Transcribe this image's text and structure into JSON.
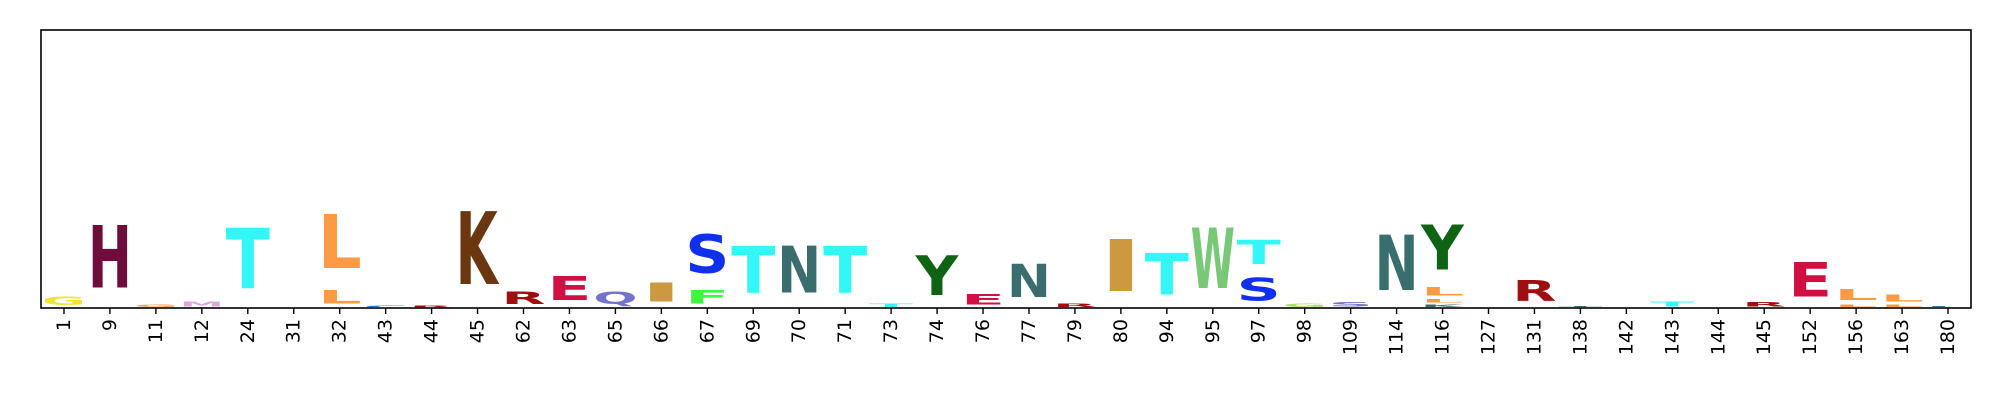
{
  "chart_data": {
    "type": "sequence-logo",
    "title": "",
    "xlabel": "",
    "ylabel": "",
    "ylim": [
      0,
      1
    ],
    "grid": false,
    "legend": "none",
    "positions": [
      "1",
      "9",
      "11",
      "12",
      "24",
      "31",
      "32",
      "43",
      "44",
      "45",
      "62",
      "63",
      "65",
      "66",
      "67",
      "69",
      "70",
      "71",
      "73",
      "74",
      "76",
      "77",
      "79",
      "80",
      "94",
      "95",
      "97",
      "98",
      "109",
      "114",
      "116",
      "127",
      "131",
      "138",
      "142",
      "143",
      "144",
      "145",
      "152",
      "156",
      "163",
      "180"
    ],
    "stacks": [
      [
        {
          "letter": "G",
          "height": 0.05,
          "color": "#f2e430"
        }
      ],
      [
        {
          "letter": "H",
          "height": 0.36,
          "color": "#6e0d3c"
        }
      ],
      [
        {
          "letter": "G",
          "height": 0.015,
          "color": "#f0a060"
        }
      ],
      [
        {
          "letter": "M",
          "height": 0.03,
          "color": "#dcaad6"
        }
      ],
      [
        {
          "letter": "T",
          "height": 0.35,
          "color": "#33f7f7"
        }
      ],
      [],
      [
        {
          "letter": "L",
          "height": 0.08,
          "color": "#ff9a44"
        },
        {
          "letter": "L",
          "height": 0.31,
          "color": "#ff9a44"
        }
      ],
      [
        {
          "letter": "C",
          "height": 0.01,
          "color": "#3a7ab8"
        }
      ],
      [
        {
          "letter": "R",
          "height": 0.01,
          "color": "#9e1010"
        }
      ],
      [
        {
          "letter": "K",
          "height": 0.42,
          "color": "#6a3710"
        }
      ],
      [
        {
          "letter": "R",
          "height": 0.07,
          "color": "#9e1010"
        }
      ],
      [
        {
          "letter": "E",
          "height": 0.14,
          "color": "#d01041"
        }
      ],
      [
        {
          "letter": "Q",
          "height": 0.07,
          "color": "#7373cc"
        }
      ],
      [
        {
          "letter": "I",
          "height": 0.11,
          "color": "#cc9940"
        }
      ],
      [
        {
          "letter": "F",
          "height": 0.08,
          "color": "#3ff53f"
        },
        {
          "letter": "S",
          "height": 0.22,
          "color": "#1030f0"
        }
      ],
      [
        {
          "letter": "T",
          "height": 0.27,
          "color": "#33f7f7"
        }
      ],
      [
        {
          "letter": "N",
          "height": 0.27,
          "color": "#3a6e6e"
        }
      ],
      [
        {
          "letter": "T",
          "height": 0.27,
          "color": "#33f7f7"
        }
      ],
      [
        {
          "letter": "T",
          "height": 0.02,
          "color": "#33f7f7"
        }
      ],
      [
        {
          "letter": "Y",
          "height": 0.23,
          "color": "#0f6414"
        }
      ],
      [
        {
          "letter": "E",
          "height": 0.06,
          "color": "#d01041"
        }
      ],
      [
        {
          "letter": "N",
          "height": 0.19,
          "color": "#3a6e6e"
        }
      ],
      [
        {
          "letter": "R",
          "height": 0.02,
          "color": "#9e1010"
        }
      ],
      [
        {
          "letter": "I",
          "height": 0.3,
          "color": "#cc9940"
        }
      ],
      [
        {
          "letter": "T",
          "height": 0.24,
          "color": "#33f7f7"
        }
      ],
      [
        {
          "letter": "W",
          "height": 0.35,
          "color": "#78c878"
        }
      ],
      [
        {
          "letter": "S",
          "height": 0.13,
          "color": "#1030f0"
        },
        {
          "letter": "T",
          "height": 0.14,
          "color": "#33f7f7"
        }
      ],
      [
        {
          "letter": "G",
          "height": 0.02,
          "color": "#a8e060"
        }
      ],
      [
        {
          "letter": "S",
          "height": 0.025,
          "color": "#7373cc"
        }
      ],
      [
        {
          "letter": "N",
          "height": 0.32,
          "color": "#3a6e6e"
        }
      ],
      [
        {
          "letter": "K",
          "height": 0.015,
          "color": "#3a6e6e"
        },
        {
          "letter": "L",
          "height": 0.02,
          "color": "#ff9a44"
        },
        {
          "letter": "L",
          "height": 0.05,
          "color": "#ff9a44"
        },
        {
          "letter": "Y",
          "height": 0.26,
          "color": "#0f6414"
        }
      ],
      [],
      [
        {
          "letter": "R",
          "height": 0.12,
          "color": "#9e1010"
        }
      ],
      [
        {
          "letter": "T",
          "height": 0.008,
          "color": "#3a6e6e"
        }
      ],
      [],
      [
        {
          "letter": "T",
          "height": 0.03,
          "color": "#33f7f7"
        }
      ],
      [],
      [
        {
          "letter": "R",
          "height": 0.025,
          "color": "#9e1010"
        }
      ],
      [
        {
          "letter": "E",
          "height": 0.2,
          "color": "#d01041"
        }
      ],
      [
        {
          "letter": "L",
          "height": 0.015,
          "color": "#ff9a44"
        },
        {
          "letter": "L",
          "height": 0.065,
          "color": "#ff9a44"
        }
      ],
      [
        {
          "letter": "L",
          "height": 0.015,
          "color": "#ff9a44"
        },
        {
          "letter": "L",
          "height": 0.04,
          "color": "#ff9a44"
        }
      ],
      [
        {
          "letter": "L",
          "height": 0.008,
          "color": "#3a7ab8"
        }
      ]
    ]
  }
}
